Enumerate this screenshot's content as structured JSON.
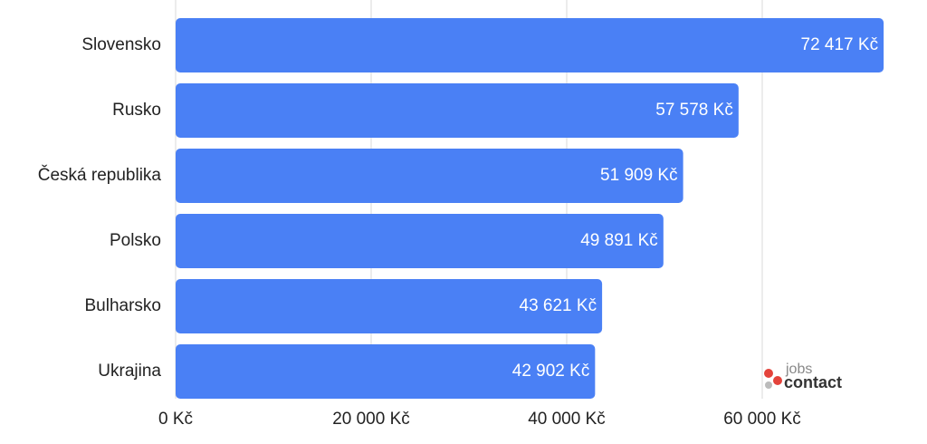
{
  "chart_data": {
    "type": "hbar",
    "categories": [
      "Slovensko",
      "Rusko",
      "Česká republika",
      "Polsko",
      "Bulharsko",
      "Ukrajina"
    ],
    "values": [
      72417,
      57578,
      51909,
      49891,
      43621,
      42902
    ],
    "value_labels": [
      "72 417 Kč",
      "57 578 Kč",
      "51 909 Kč",
      "49 891 Kč",
      "43 621 Kč",
      "42 902 Kč"
    ],
    "color": "#4a80f5",
    "xlim": [
      0,
      76000
    ],
    "xticks": [
      {
        "value": 0,
        "label": "0 Kč"
      },
      {
        "value": 20000,
        "label": "20 000 Kč"
      },
      {
        "value": 40000,
        "label": "40 000 Kč"
      },
      {
        "value": 60000,
        "label": "60 000 Kč"
      }
    ],
    "grid": true
  },
  "logo": {
    "line1": "jobs",
    "line2": "contact"
  }
}
